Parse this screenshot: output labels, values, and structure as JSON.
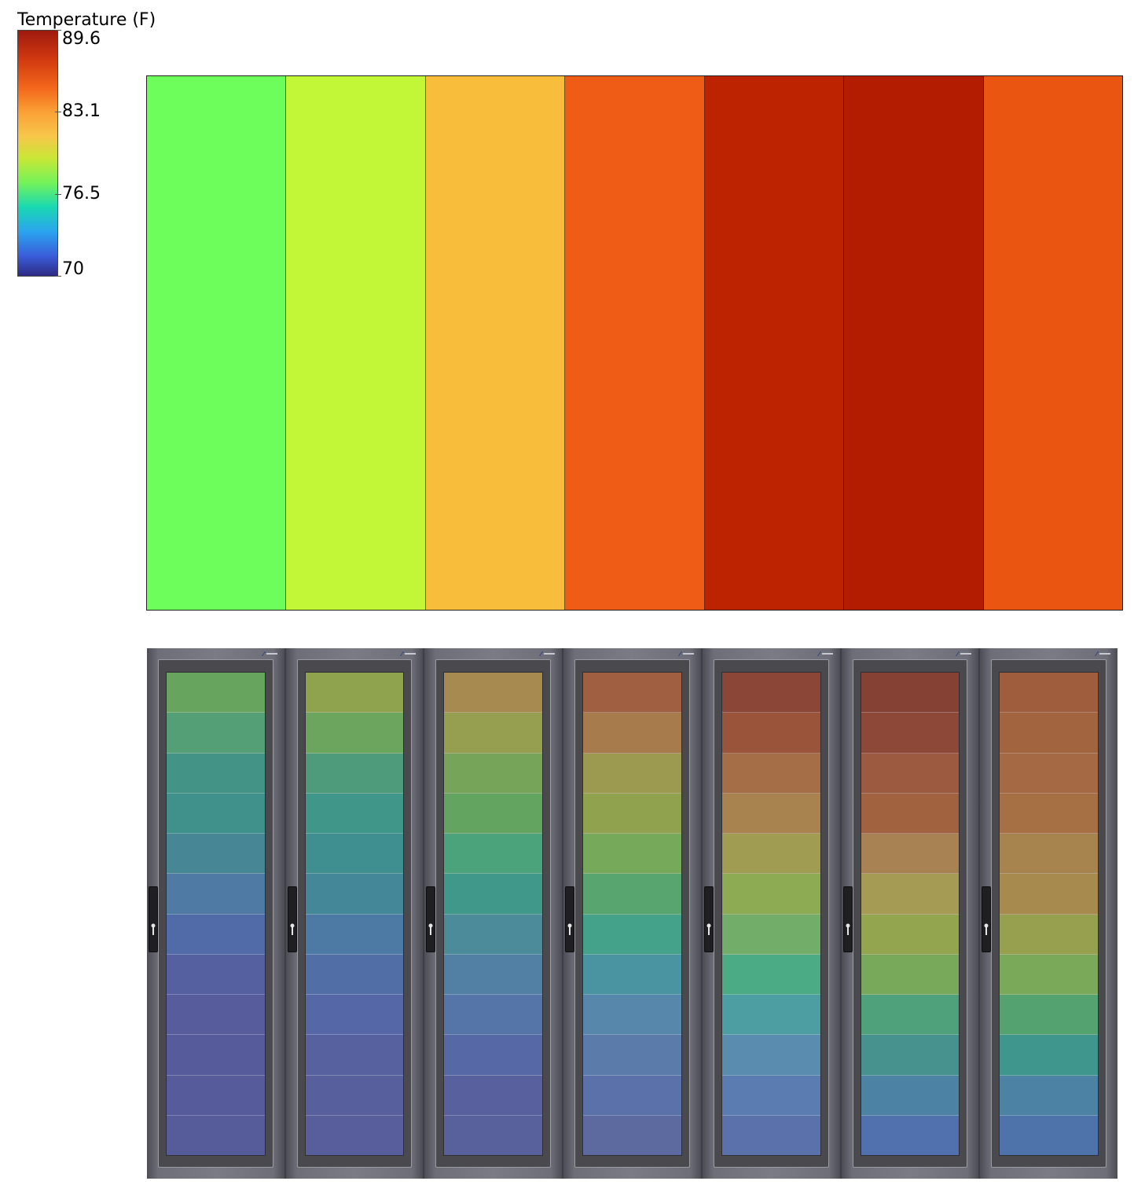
{
  "chart_data": [
    {
      "type": "heatmap",
      "title": "",
      "colorbar": {
        "title": "Temperature (F)",
        "min": 70,
        "max": 89.6,
        "ticks": [
          {
            "value": 89.6,
            "label": "89.6"
          },
          {
            "value": 83.1,
            "label": "83.1"
          },
          {
            "value": 76.5,
            "label": "76.5"
          },
          {
            "value": 70,
            "label": "70"
          }
        ],
        "colors": {
          "top": "#9e1a0e",
          "mid": "#c9e736",
          "bottom": "#2d2a84"
        }
      },
      "cells": [
        {
          "value": 80.0,
          "color": "#6efe5c"
        },
        {
          "value": 82.0,
          "color": "#c2f737"
        },
        {
          "value": 84.5,
          "color": "#f8bd3a"
        },
        {
          "value": 87.3,
          "color": "#ef5c15"
        },
        {
          "value": 89.0,
          "color": "#be2301"
        },
        {
          "value": 89.4,
          "color": "#b41c00"
        },
        {
          "value": 87.5,
          "color": "#ea5512"
        }
      ]
    },
    {
      "type": "heatmap",
      "title": "",
      "racks": [
        {
          "slots": [
            "#67a45e",
            "#559f76",
            "#439486",
            "#40918b",
            "#478795",
            "#4e7aa4",
            "#516aa8",
            "#54609f",
            "#565c9c",
            "#565c9b",
            "#565c9b",
            "#565c99"
          ]
        },
        {
          "slots": [
            "#8fa24e",
            "#6ca65e",
            "#4e9b7c",
            "#409689",
            "#3f8e90",
            "#448799",
            "#4c7aa5",
            "#526ea7",
            "#5567a6",
            "#5761a0",
            "#57609d",
            "#575e9b"
          ]
        },
        {
          "slots": [
            "#a78a50",
            "#969f50",
            "#76a55a",
            "#64a461",
            "#4aa37b",
            "#3f9889",
            "#4b8b9a",
            "#5180a4",
            "#5574a7",
            "#5669a6",
            "#58619e",
            "#58619c"
          ]
        },
        {
          "slots": [
            "#a15f41",
            "#a87b4c",
            "#9b9a50",
            "#90a24e",
            "#76a959",
            "#59a570",
            "#44a18a",
            "#4a93a0",
            "#5788ab",
            "#5b7bab",
            "#5a71a9",
            "#5c6aa0"
          ]
        },
        {
          "slots": [
            "#8c4638",
            "#995439",
            "#a66e47",
            "#a9834f",
            "#a09d52",
            "#8cab53",
            "#72ae6a",
            "#4bab84",
            "#4d9ea2",
            "#5a8cb0",
            "#5b7cb0",
            "#5b71ab"
          ]
        },
        {
          "slots": [
            "#854234",
            "#8d4838",
            "#9c5a40",
            "#a1623f",
            "#a88252",
            "#a59b54",
            "#93a54e",
            "#78a95a",
            "#4ea17a",
            "#47928f",
            "#4c83a5",
            "#5071ae"
          ]
        },
        {
          "slots": [
            "#9f5d3e",
            "#a2643f",
            "#a56a44",
            "#a67044",
            "#a7844e",
            "#a78b4e",
            "#97a04e",
            "#7aa959",
            "#53a26f",
            "#3f968c",
            "#4c83a5",
            "#4e73ab"
          ]
        }
      ]
    }
  ]
}
